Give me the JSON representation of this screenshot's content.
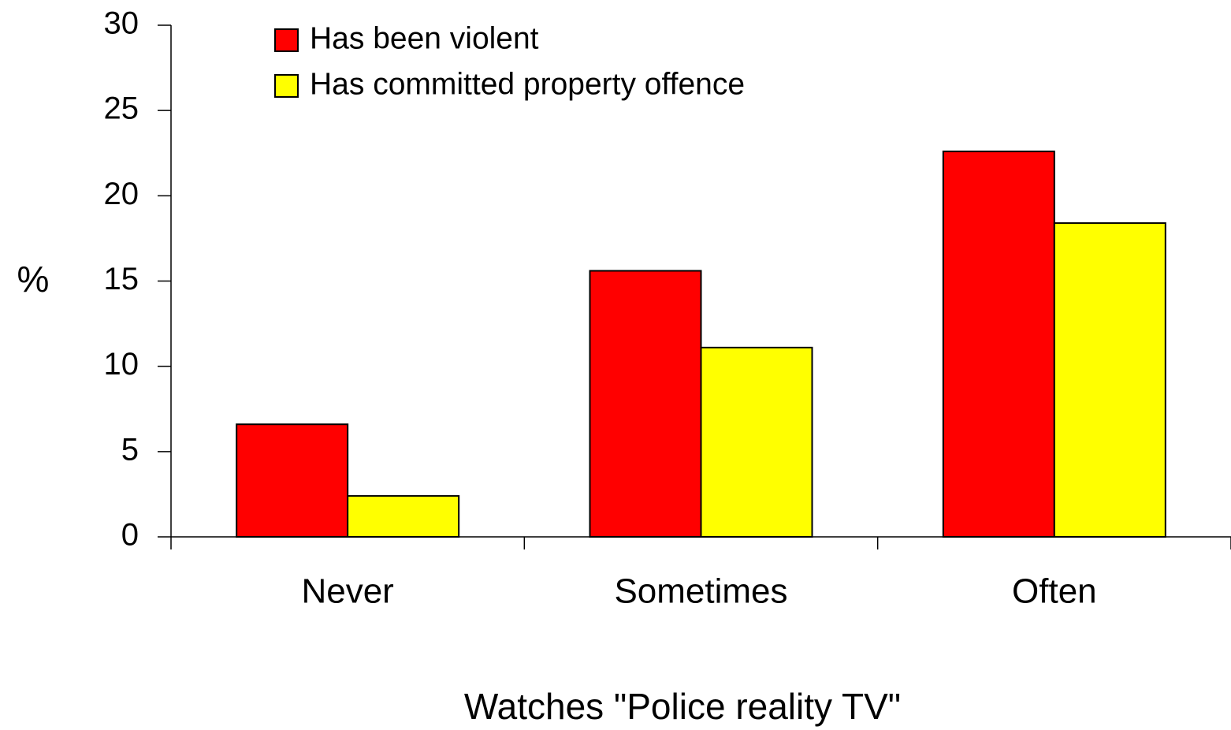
{
  "chart_data": {
    "type": "bar",
    "x_label": "Watches \"Police reality TV\"",
    "y_label": "%",
    "categories": [
      "Never",
      "Sometimes",
      "Often"
    ],
    "series": [
      {
        "name": "Has been violent",
        "color": "#ff0000",
        "values": [
          6.6,
          15.6,
          22.6
        ]
      },
      {
        "name": "Has committed property offence",
        "color": "#ffff00",
        "values": [
          2.4,
          11.1,
          18.4
        ]
      }
    ],
    "ylim": [
      0,
      30
    ],
    "yticks": [
      0,
      5,
      10,
      15,
      20,
      25,
      30
    ],
    "legend": "upper left",
    "grid": false
  }
}
